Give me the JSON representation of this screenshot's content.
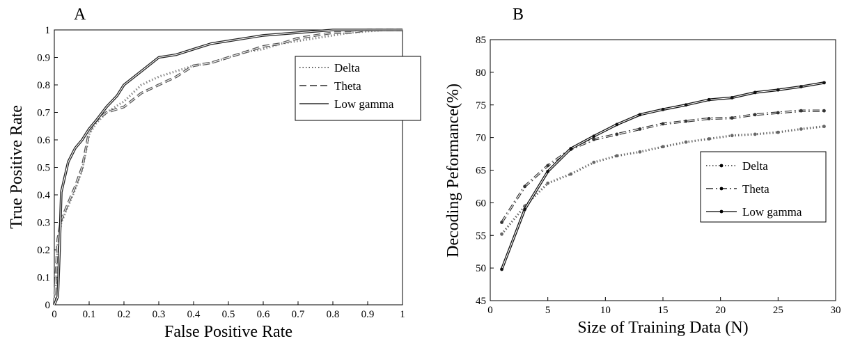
{
  "chart_data": [
    {
      "type": "line",
      "panel_label": "A",
      "xlabel": "False Positive Rate",
      "ylabel": "True Positive Rate",
      "xlim": [
        0,
        1
      ],
      "ylim": [
        0,
        1
      ],
      "x_ticks": [
        "0",
        "0.1",
        "0.2",
        "0.3",
        "0.4",
        "0.5",
        "0.6",
        "0.7",
        "0.8",
        "0.9",
        "1"
      ],
      "y_ticks": [
        "0",
        "0.1",
        "0.2",
        "0.3",
        "0.4",
        "0.5",
        "0.6",
        "0.7",
        "0.8",
        "0.9",
        "1"
      ],
      "grid": false,
      "legend_position": "top-right",
      "series": [
        {
          "name": "Delta",
          "style": "dotted",
          "color": "#888888",
          "x": [
            0,
            0.005,
            0.01,
            0.02,
            0.04,
            0.06,
            0.08,
            0.1,
            0.12,
            0.15,
            0.2,
            0.25,
            0.3,
            0.35,
            0.4,
            0.45,
            0.5,
            0.55,
            0.6,
            0.65,
            0.7,
            0.75,
            0.8,
            0.85,
            0.9,
            0.95,
            1
          ],
          "y": [
            0,
            0.1,
            0.22,
            0.3,
            0.36,
            0.42,
            0.49,
            0.62,
            0.66,
            0.7,
            0.74,
            0.8,
            0.83,
            0.85,
            0.87,
            0.88,
            0.9,
            0.92,
            0.93,
            0.95,
            0.96,
            0.97,
            0.98,
            0.99,
            0.995,
            1,
            1
          ]
        },
        {
          "name": "Theta",
          "style": "dashed",
          "color": "#555555",
          "x": [
            0,
            0.005,
            0.01,
            0.02,
            0.04,
            0.06,
            0.08,
            0.1,
            0.12,
            0.15,
            0.2,
            0.25,
            0.3,
            0.35,
            0.4,
            0.45,
            0.5,
            0.55,
            0.6,
            0.65,
            0.7,
            0.75,
            0.8,
            0.85,
            0.9,
            0.95,
            1
          ],
          "y": [
            0,
            0.12,
            0.24,
            0.31,
            0.37,
            0.43,
            0.5,
            0.63,
            0.67,
            0.7,
            0.72,
            0.77,
            0.8,
            0.83,
            0.87,
            0.88,
            0.9,
            0.92,
            0.94,
            0.95,
            0.97,
            0.98,
            0.99,
            0.99,
            1,
            1,
            1
          ]
        },
        {
          "name": "Low gamma",
          "style": "solid",
          "color": "#222222",
          "x": [
            0,
            0.01,
            0.015,
            0.02,
            0.04,
            0.06,
            0.08,
            0.1,
            0.12,
            0.15,
            0.18,
            0.2,
            0.25,
            0.3,
            0.35,
            0.4,
            0.45,
            0.5,
            0.55,
            0.6,
            0.65,
            0.7,
            0.75,
            0.8,
            0.85,
            0.9,
            0.95,
            1
          ],
          "y": [
            0,
            0.03,
            0.2,
            0.41,
            0.52,
            0.57,
            0.6,
            0.64,
            0.67,
            0.72,
            0.76,
            0.8,
            0.85,
            0.9,
            0.91,
            0.93,
            0.95,
            0.96,
            0.97,
            0.98,
            0.985,
            0.99,
            0.995,
            1,
            1,
            1,
            1,
            1
          ]
        }
      ]
    },
    {
      "type": "line",
      "panel_label": "B",
      "xlabel": "Size of Training Data (N)",
      "ylabel": "Decoding Peformance(%)",
      "xlim": [
        0,
        30
      ],
      "ylim": [
        45,
        85
      ],
      "x_ticks": [
        "0",
        "5",
        "10",
        "15",
        "20",
        "25",
        "30"
      ],
      "y_ticks": [
        "45",
        "50",
        "55",
        "60",
        "65",
        "70",
        "75",
        "80",
        "85"
      ],
      "grid": false,
      "legend_position": "lower-right",
      "x": [
        1,
        3,
        5,
        7,
        9,
        11,
        13,
        15,
        17,
        19,
        21,
        23,
        25,
        27,
        29
      ],
      "series": [
        {
          "name": "Delta",
          "style": "dotted",
          "color": "#666666",
          "values": [
            55.2,
            59.5,
            63.0,
            64.4,
            66.2,
            67.2,
            67.8,
            68.6,
            69.3,
            69.8,
            70.3,
            70.5,
            70.8,
            71.3,
            71.7
          ]
        },
        {
          "name": "Theta",
          "style": "dashdot",
          "color": "#333333",
          "values": [
            57.0,
            62.5,
            65.7,
            68.2,
            69.7,
            70.5,
            71.3,
            72.1,
            72.5,
            72.9,
            73.0,
            73.5,
            73.8,
            74.1,
            74.1
          ]
        },
        {
          "name": "Low gamma",
          "style": "solid",
          "color": "#111111",
          "values": [
            49.8,
            59.0,
            64.8,
            68.3,
            70.2,
            72.0,
            73.5,
            74.3,
            75.0,
            75.8,
            76.1,
            76.9,
            77.3,
            77.8,
            78.4
          ]
        }
      ]
    }
  ]
}
